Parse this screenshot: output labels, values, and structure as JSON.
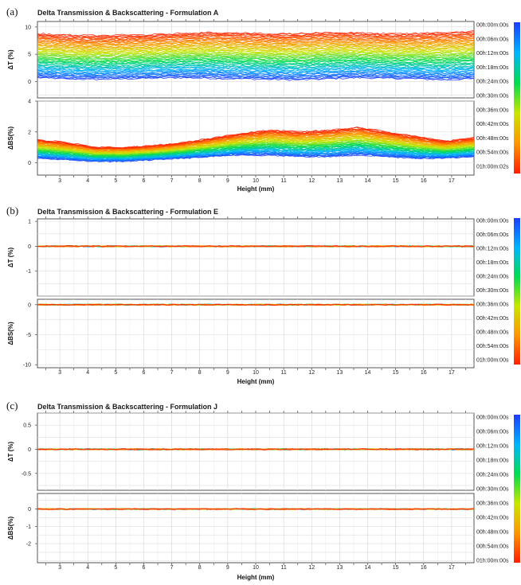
{
  "chart_data": [
    {
      "type": "line",
      "panel_letter": "(a)",
      "title": "Delta Transmission & Backscattering - Formulation A",
      "xlabel": "Height (mm)",
      "xlim": [
        2.2,
        17.8
      ],
      "x_ticks": [
        3,
        4,
        5,
        6,
        7,
        8,
        9,
        10,
        11,
        12,
        13,
        14,
        15,
        16,
        17
      ],
      "time_labels": [
        "00h:00m:00s",
        "00h:06m:00s",
        "00h:12m:00s",
        "00h:18m:00s",
        "00h:24m:00s",
        "00h:30m:00s",
        "00h:36m:00s",
        "00h:42m:00s",
        "00h:48m:00s",
        "00h:54m:00s",
        "01h:00m:02s"
      ],
      "colorbar": [
        "#1e3cff",
        "#00b4ff",
        "#00dc50",
        "#c8e600",
        "#ff9600",
        "#ff1e00"
      ],
      "legend_position": "right",
      "grid": true,
      "subplots": [
        {
          "ylabel": "ΔT (%)",
          "ylim": [
            -3,
            11
          ],
          "y_ticks": [
            0,
            5,
            10
          ],
          "series": [
            {
              "values_start": [
                0.7,
                0.5,
                0.4,
                0.5,
                0.6,
                0.7,
                0.6,
                0.5,
                0.4,
                0.3,
                0.5,
                0.7,
                0.6,
                0.5,
                0.3,
                0.5
              ],
              "values_end": [
                8.8,
                8.5,
                8.4,
                8.5,
                8.6,
                8.8,
                9.0,
                8.9,
                8.7,
                8.8,
                9.0,
                8.9,
                8.7,
                8.8,
                9.0,
                9.2
              ]
            }
          ]
        },
        {
          "ylabel": "ΔBS(%)",
          "ylim": [
            -0.8,
            4
          ],
          "y_ticks": [
            0,
            2,
            4
          ],
          "series": [
            {
              "values_start": [
                0.3,
                0.2,
                0.1,
                0.1,
                0.2,
                0.3,
                0.4,
                0.5,
                0.5,
                0.4,
                0.4,
                0.5,
                0.4,
                0.3,
                0.3,
                0.4
              ],
              "values_end": [
                1.5,
                1.3,
                1.0,
                1.0,
                1.1,
                1.3,
                1.6,
                1.9,
                2.1,
                2.0,
                2.1,
                2.3,
                2.0,
                1.7,
                1.4,
                1.6
              ]
            }
          ]
        }
      ]
    },
    {
      "type": "line",
      "panel_letter": "(b)",
      "title": "Delta Transmission & Backscattering - Formulation E",
      "xlabel": "Height (mm)",
      "xlim": [
        2.2,
        17.8
      ],
      "x_ticks": [
        3,
        4,
        5,
        6,
        7,
        8,
        9,
        10,
        11,
        12,
        13,
        14,
        15,
        16,
        17
      ],
      "time_labels": [
        "00h:00m:00s",
        "00h:06m:00s",
        "00h:12m:00s",
        "00h:18m:00s",
        "00h:24m:00s",
        "00h:30m:00s",
        "00h:36m:00s",
        "00h:42m:00s",
        "00h:48m:00s",
        "00h:54m:00s",
        "01h:00m:00s"
      ],
      "colorbar": [
        "#1e3cff",
        "#00b4ff",
        "#00dc50",
        "#c8e600",
        "#ff9600",
        "#ff1e00"
      ],
      "legend_position": "right",
      "grid": true,
      "subplots": [
        {
          "ylabel": "ΔT (%)",
          "ylim": [
            -2,
            1.1
          ],
          "y_ticks": [
            -1,
            0,
            1
          ],
          "series": [
            {
              "values_start": [
                0,
                0,
                0,
                0,
                0,
                0,
                0,
                0,
                0,
                0,
                0,
                0,
                0,
                0,
                0,
                0
              ],
              "values_end": [
                0,
                0,
                0,
                0,
                0,
                0,
                0,
                0,
                0,
                0,
                0,
                0,
                0,
                0,
                0,
                0
              ]
            }
          ]
        },
        {
          "ylabel": "ΔBS(%)",
          "ylim": [
            -10.5,
            0.9
          ],
          "y_ticks": [
            -10,
            -5,
            0
          ],
          "series": [
            {
              "values_start": [
                0,
                0,
                0,
                0,
                0,
                0,
                0,
                0,
                0,
                0,
                0,
                0,
                0,
                0,
                0,
                0
              ],
              "values_end": [
                0,
                0,
                0,
                0,
                0,
                0,
                0,
                0,
                0,
                0,
                0,
                0,
                0,
                0,
                0,
                0
              ]
            }
          ]
        }
      ]
    },
    {
      "type": "line",
      "panel_letter": "(c)",
      "title": "Delta Transmission & Backscattering - Formulation J",
      "xlabel": "Height (mm)",
      "xlim": [
        2.2,
        17.8
      ],
      "x_ticks": [
        3,
        4,
        5,
        6,
        7,
        8,
        9,
        10,
        11,
        12,
        13,
        14,
        15,
        16,
        17
      ],
      "time_labels": [
        "00h:00m:00s",
        "00h:06m:00s",
        "00h:12m:00s",
        "00h:18m:00s",
        "00h:24m:00s",
        "00h:30m:00s",
        "00h:36m:00s",
        "00h:42m:00s",
        "00h:48m:00s",
        "00h:54m:00s",
        "01h:00m:00s"
      ],
      "colorbar": [
        "#1e3cff",
        "#00b4ff",
        "#00dc50",
        "#c8e600",
        "#ff9600",
        "#ff1e00"
      ],
      "legend_position": "right",
      "grid": true,
      "subplots": [
        {
          "ylabel": "ΔT (%)",
          "ylim": [
            -0.85,
            0.75
          ],
          "y_ticks": [
            -0.5,
            0.0,
            0.5
          ],
          "series": [
            {
              "values_start": [
                0,
                0,
                0,
                0,
                0,
                0,
                0,
                0,
                0,
                0,
                0,
                0,
                0,
                0,
                0,
                0
              ],
              "values_end": [
                0,
                0,
                0,
                0,
                0,
                0,
                0,
                0,
                0,
                0,
                0,
                0,
                0,
                0,
                0,
                0
              ]
            }
          ]
        },
        {
          "ylabel": "ΔBS(%)",
          "ylim": [
            -3.1,
            0.9
          ],
          "y_ticks": [
            -2,
            -1,
            0
          ],
          "series": [
            {
              "values_start": [
                0,
                0,
                0,
                0,
                0,
                0,
                0,
                0,
                0,
                0,
                0,
                0,
                0,
                0,
                0,
                0
              ],
              "values_end": [
                0,
                0,
                0,
                0,
                0,
                0,
                0,
                0,
                0,
                0,
                0,
                0,
                0,
                0,
                0,
                0
              ]
            }
          ]
        }
      ]
    }
  ]
}
